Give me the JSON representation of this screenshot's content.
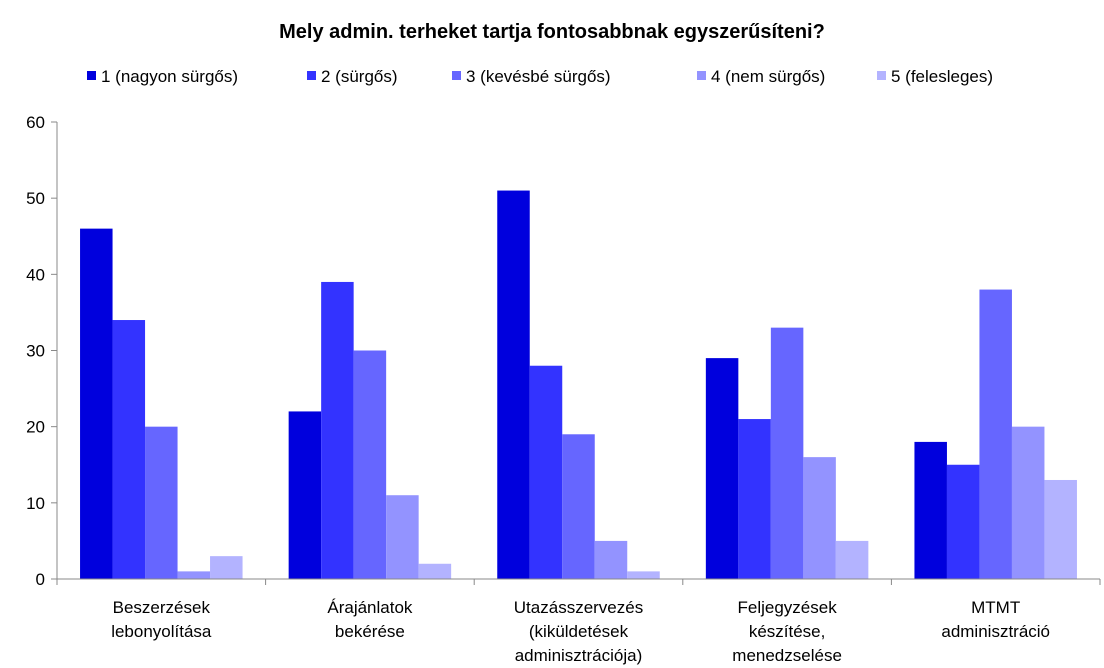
{
  "chart_data": {
    "type": "bar",
    "title": "Mely admin. terheket tartja fontosabbnak egyszerűsíteni?",
    "categories": [
      [
        "Beszerzések",
        "lebonyolítása"
      ],
      [
        "Árajánlatok",
        "bekérése"
      ],
      [
        "Utazásszervezés",
        "(kiküldetések",
        "adminisztrációja)"
      ],
      [
        "Feljegyzések",
        "készítése,",
        "menedzselése"
      ],
      [
        "MTMT",
        "adminisztráció"
      ]
    ],
    "series": [
      {
        "name": "1 (nagyon sürgős)",
        "color": "#0000dd",
        "values": [
          46,
          22,
          51,
          29,
          18
        ]
      },
      {
        "name": "2 (sürgős)",
        "color": "#3333ff",
        "values": [
          34,
          39,
          28,
          21,
          15
        ]
      },
      {
        "name": "3 (kevésbé sürgős)",
        "color": "#6666ff",
        "values": [
          20,
          30,
          19,
          33,
          38
        ]
      },
      {
        "name": "4 (nem sürgős)",
        "color": "#9393ff",
        "values": [
          1,
          11,
          5,
          16,
          20
        ]
      },
      {
        "name": "5 (felesleges)",
        "color": "#b3b3ff",
        "values": [
          3,
          2,
          1,
          5,
          13
        ]
      }
    ],
    "ylim": [
      0,
      60
    ],
    "yticks": [
      0,
      10,
      20,
      30,
      40,
      50,
      60
    ],
    "legend": "top"
  }
}
